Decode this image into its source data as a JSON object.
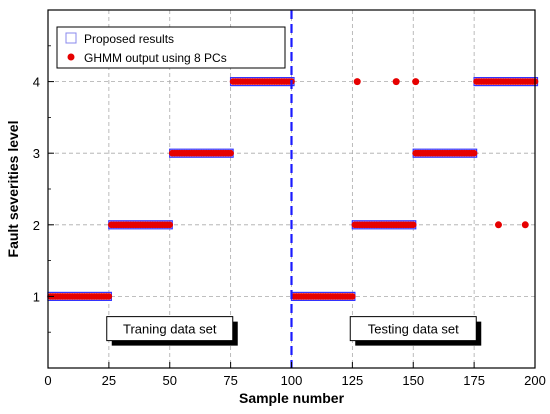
{
  "chart_data": {
    "type": "scatter",
    "xlabel": "Sample number",
    "ylabel": "Fault severities level",
    "xlim": [
      0,
      200
    ],
    "ylim": [
      0,
      5
    ],
    "x_ticks": [
      "0",
      "25",
      "50",
      "75",
      "100",
      "125",
      "150",
      "175",
      "200"
    ],
    "y_ticks": [
      "1",
      "2",
      "3",
      "4"
    ],
    "grid": true,
    "legend_position": "top-left",
    "divider_x": 100,
    "divider_color": "#1a1aff",
    "series": [
      {
        "name": "Proposed results",
        "marker": "open-square",
        "color": "#3333ff",
        "segments": [
          {
            "x_start": 1,
            "x_end": 25,
            "level": 1
          },
          {
            "x_start": 26,
            "x_end": 50,
            "level": 2
          },
          {
            "x_start": 51,
            "x_end": 75,
            "level": 3
          },
          {
            "x_start": 76,
            "x_end": 100,
            "level": 4
          },
          {
            "x_start": 101,
            "x_end": 125,
            "level": 1
          },
          {
            "x_start": 126,
            "x_end": 150,
            "level": 2
          },
          {
            "x_start": 151,
            "x_end": 175,
            "level": 3
          },
          {
            "x_start": 176,
            "x_end": 200,
            "level": 4
          }
        ]
      },
      {
        "name": "GHMM output using 8 PCs",
        "marker": "filled-circle",
        "color": "#e60000",
        "segments": [
          {
            "x_start": 1,
            "x_end": 25,
            "level": 1
          },
          {
            "x_start": 26,
            "x_end": 50,
            "level": 2
          },
          {
            "x_start": 51,
            "x_end": 75,
            "level": 3
          },
          {
            "x_start": 76,
            "x_end": 100,
            "level": 4
          },
          {
            "x_start": 101,
            "x_end": 125,
            "level": 1
          },
          {
            "x_start": 126,
            "x_end": 150,
            "level": 2
          },
          {
            "x_start": 151,
            "x_end": 175,
            "level": 3
          },
          {
            "x_start": 176,
            "x_end": 200,
            "level": 4
          }
        ],
        "outliers": [
          {
            "x": 127,
            "y": 4
          },
          {
            "x": 143,
            "y": 4
          },
          {
            "x": 151,
            "y": 4
          },
          {
            "x": 185,
            "y": 2
          },
          {
            "x": 196,
            "y": 2
          }
        ]
      }
    ],
    "annotations": [
      {
        "text": "Traning data set",
        "x": 50,
        "y": 0.55
      },
      {
        "text": "Testing data set",
        "x": 150,
        "y": 0.55
      }
    ]
  }
}
